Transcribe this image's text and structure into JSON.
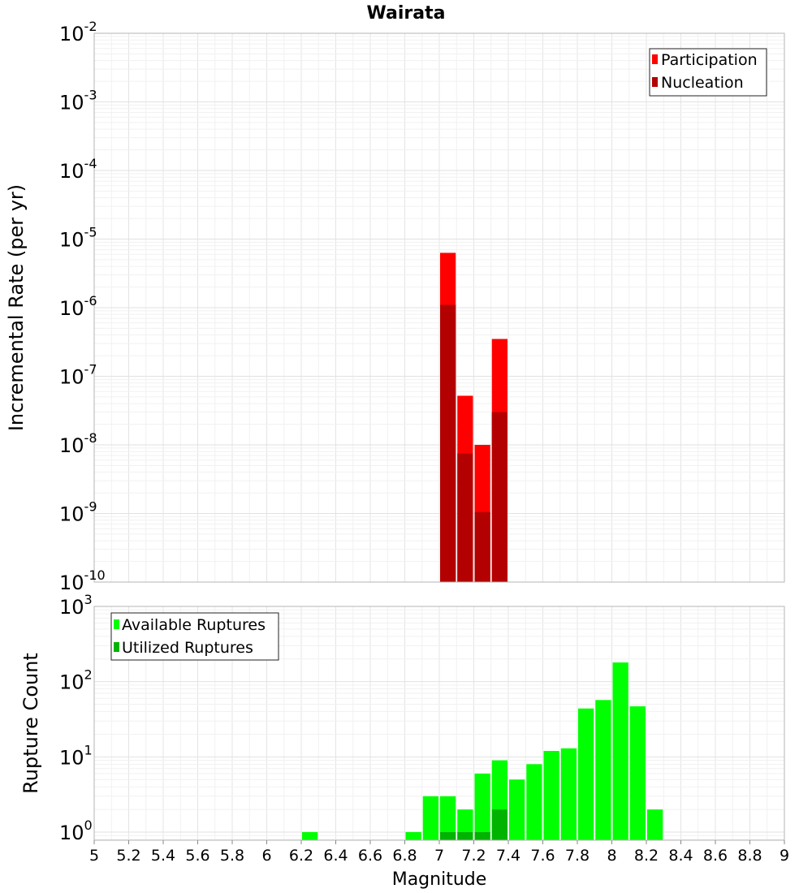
{
  "title": "Wairata",
  "colors": {
    "participation": "#ff0000",
    "nucleation": "#b30000",
    "available": "#00ff00",
    "utilized": "#00b300",
    "grid": "#ebebeb",
    "frame": "#b4b4b4"
  },
  "chart_data": [
    {
      "type": "bar",
      "ylabel": "Incremental Rate (per yr)",
      "xlabel": "",
      "yscale": "log",
      "ylim": [
        1e-10,
        0.01
      ],
      "xlim": [
        5,
        9
      ],
      "grid": true,
      "legend_position": "top-right",
      "y_tick_exponents": [
        "-10",
        "-9",
        "-8",
        "-7",
        "-6",
        "-5",
        "-4",
        "-3",
        "-2"
      ],
      "x": [
        7.05,
        7.15,
        7.25,
        7.35
      ],
      "series": [
        {
          "name": "Participation",
          "values": [
            6.3e-06,
            5.2e-08,
            1e-08,
            3.5e-07
          ]
        },
        {
          "name": "Nucleation",
          "values": [
            1.1e-06,
            7.5e-09,
            1.05e-09,
            3e-08
          ]
        }
      ]
    },
    {
      "type": "bar",
      "ylabel": "Rupture Count",
      "xlabel": "Magnitude",
      "yscale": "log",
      "ylim": [
        0.78,
        1000
      ],
      "xlim": [
        5,
        9
      ],
      "grid": true,
      "legend_position": "top-left",
      "y_tick_exponents": [
        "0",
        "1",
        "2",
        "3"
      ],
      "x_ticks": [
        "5",
        "5.2",
        "5.4",
        "5.6",
        "5.8",
        "6",
        "6.2",
        "6.4",
        "6.6",
        "6.8",
        "7",
        "7.2",
        "7.4",
        "7.6",
        "7.8",
        "8",
        "8.2",
        "8.4",
        "8.6",
        "8.8",
        "9"
      ],
      "x": [
        6.25,
        6.85,
        6.95,
        7.05,
        7.15,
        7.25,
        7.35,
        7.45,
        7.55,
        7.65,
        7.75,
        7.85,
        7.95,
        8.05,
        8.15,
        8.25
      ],
      "series": [
        {
          "name": "Available Ruptures",
          "values": [
            1,
            1,
            3,
            3,
            2,
            6,
            9,
            5,
            8,
            12,
            13,
            44,
            57,
            180,
            47,
            2
          ]
        },
        {
          "name": "Utilized Ruptures",
          "values": [
            0,
            0,
            0,
            1,
            1,
            1,
            2,
            0,
            0,
            0,
            0,
            0,
            0,
            0,
            0,
            0
          ]
        }
      ]
    }
  ]
}
